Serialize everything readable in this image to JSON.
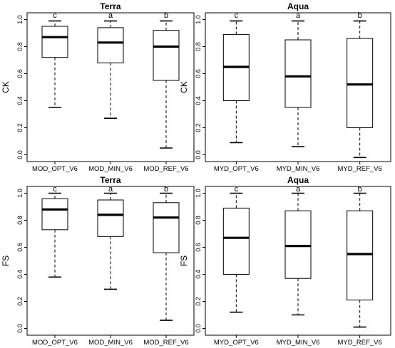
{
  "chart_data": [
    {
      "type": "box",
      "title": "Terra",
      "ylabel": "CK",
      "ylim": [
        -0.05,
        1.05
      ],
      "yticks": [
        "0.0",
        "0.2",
        "0.4",
        "0.6",
        "0.8",
        "1.0"
      ],
      "categories": [
        "MOD_OPT_V6",
        "MOD_MIN_V6",
        "MOD_REF_V6"
      ],
      "letters": [
        "c",
        "a",
        "b"
      ],
      "boxes": [
        {
          "min": 0.35,
          "q1": 0.72,
          "median": 0.87,
          "q3": 0.95,
          "max": 0.99
        },
        {
          "min": 0.27,
          "q1": 0.68,
          "median": 0.83,
          "q3": 0.94,
          "max": 0.99
        },
        {
          "min": 0.05,
          "q1": 0.55,
          "median": 0.8,
          "q3": 0.92,
          "max": 0.99
        }
      ]
    },
    {
      "type": "box",
      "title": "Aqua",
      "ylabel": "CK",
      "ylim": [
        -0.05,
        1.05
      ],
      "yticks": [
        "0.0",
        "0.2",
        "0.4",
        "0.6",
        "0.8",
        "1.0"
      ],
      "categories": [
        "MYD_OPT_V6",
        "MYD_MIN_V6",
        "MYD_REF_V6"
      ],
      "letters": [
        "c",
        "a",
        "b"
      ],
      "boxes": [
        {
          "min": 0.09,
          "q1": 0.4,
          "median": 0.65,
          "q3": 0.89,
          "max": 0.99
        },
        {
          "min": 0.06,
          "q1": 0.35,
          "median": 0.58,
          "q3": 0.85,
          "max": 0.99
        },
        {
          "min": -0.02,
          "q1": 0.2,
          "median": 0.52,
          "q3": 0.86,
          "max": 0.99
        }
      ]
    },
    {
      "type": "box",
      "title": "Terra",
      "ylabel": "FS",
      "ylim": [
        -0.05,
        1.05
      ],
      "yticks": [
        "0.0",
        "0.2",
        "0.4",
        "0.6",
        "0.8",
        "1.0"
      ],
      "categories": [
        "MOD_OPT_V6",
        "MOD_MIN_V6",
        "MOD_REF_V6"
      ],
      "letters": [
        "c",
        "a",
        "b"
      ],
      "boxes": [
        {
          "min": 0.38,
          "q1": 0.73,
          "median": 0.88,
          "q3": 0.96,
          "max": 1.0
        },
        {
          "min": 0.29,
          "q1": 0.68,
          "median": 0.84,
          "q3": 0.95,
          "max": 1.0
        },
        {
          "min": 0.06,
          "q1": 0.56,
          "median": 0.82,
          "q3": 0.93,
          "max": 1.0
        }
      ]
    },
    {
      "type": "box",
      "title": "Aqua",
      "ylabel": "FS",
      "ylim": [
        -0.05,
        1.05
      ],
      "yticks": [
        "0.0",
        "0.2",
        "0.4",
        "0.6",
        "0.8",
        "1.0"
      ],
      "categories": [
        "MYD_OPT_V6",
        "MYD_MIN_V6",
        "MYD_REF_V6"
      ],
      "letters": [
        "c",
        "a",
        "b"
      ],
      "boxes": [
        {
          "min": 0.12,
          "q1": 0.4,
          "median": 0.67,
          "q3": 0.89,
          "max": 1.0
        },
        {
          "min": 0.1,
          "q1": 0.37,
          "median": 0.61,
          "q3": 0.87,
          "max": 1.0
        },
        {
          "min": 0.01,
          "q1": 0.21,
          "median": 0.55,
          "q3": 0.87,
          "max": 1.0
        }
      ]
    }
  ]
}
